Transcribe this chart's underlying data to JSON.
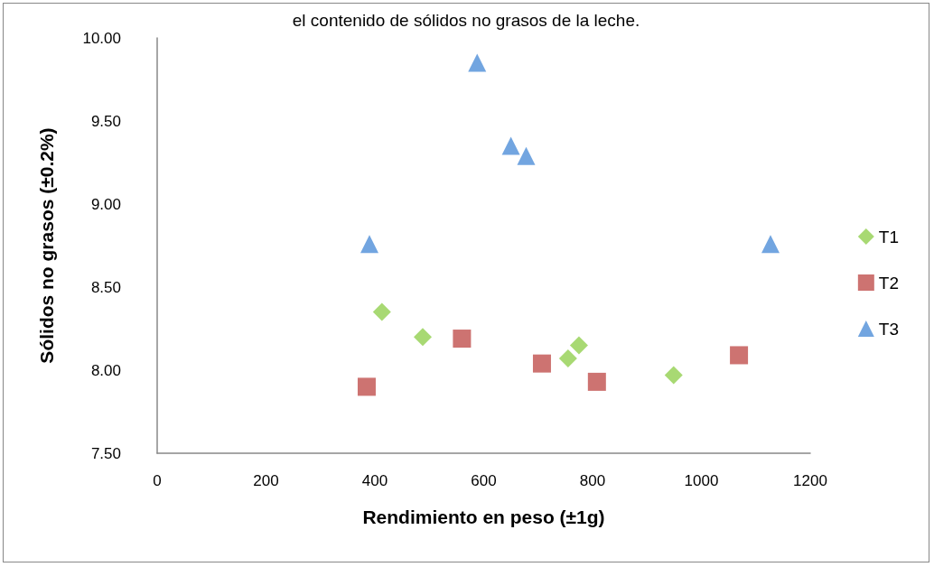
{
  "chart_data": {
    "type": "scatter",
    "title": "el contenido de sólidos no grasos de la leche.",
    "xlabel": "Rendimiento en peso (±1g)",
    "ylabel": "Sólidos no grasos (±0.2%)",
    "xlim": [
      0,
      1200
    ],
    "xticks": [
      0,
      200,
      400,
      600,
      800,
      1000,
      1200
    ],
    "ylim": [
      7.5,
      10
    ],
    "yticks": [
      {
        "value": 7.5,
        "label": "7.50"
      },
      {
        "value": 8,
        "label": "8.00"
      },
      {
        "value": 8.5,
        "label": "8.50"
      },
      {
        "value": 9,
        "label": "9.00"
      },
      {
        "value": 9.5,
        "label": "9.50"
      },
      {
        "value": 10,
        "label": "10.00"
      }
    ],
    "grid": false,
    "legend": "right",
    "series": [
      {
        "name": "T1",
        "color": "#92d050",
        "marker": "diamond",
        "x": [
          413,
          488,
          755,
          775,
          949
        ],
        "values": [
          8.35,
          8.2,
          8.07,
          8.15,
          7.97
        ]
      },
      {
        "name": "T2",
        "color": "#c0504d",
        "marker": "square",
        "x": [
          385,
          560,
          707,
          808,
          1069
        ],
        "values": [
          7.9,
          8.19,
          8.04,
          7.93,
          8.09
        ]
      },
      {
        "name": "T3",
        "color": "#4f8fd8",
        "marker": "triangle",
        "x": [
          390,
          588,
          650,
          678,
          1127
        ],
        "values": [
          8.76,
          9.85,
          9.35,
          9.29,
          8.76
        ]
      }
    ]
  }
}
